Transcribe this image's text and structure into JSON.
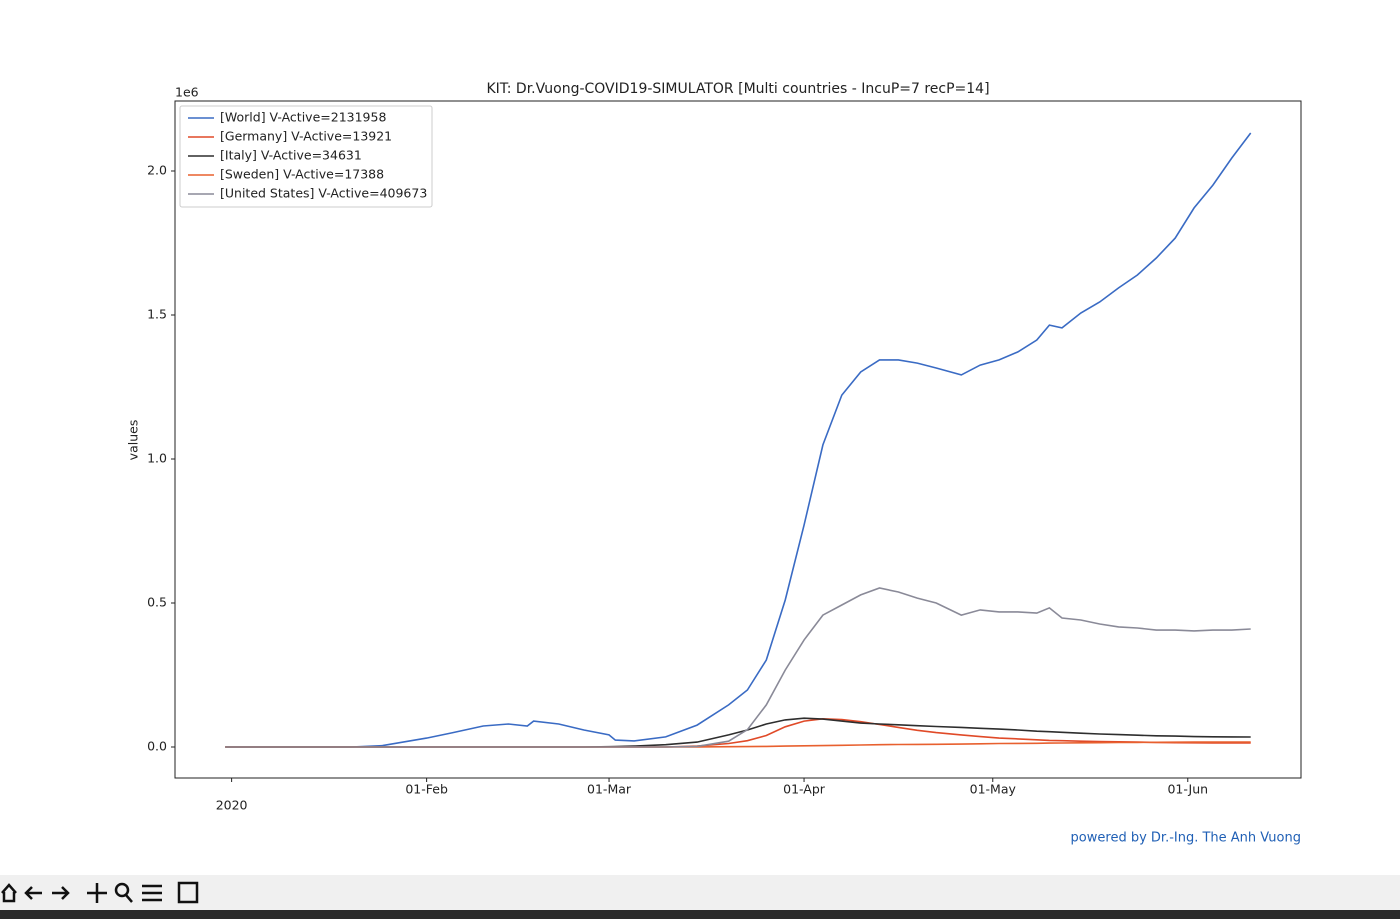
{
  "chart_data": {
    "type": "line",
    "title": "KIT: Dr.Vuong-COVID19-SIMULATOR [Multi countries - IncuP=7 recP=14]",
    "y_label": "values",
    "y_offset_label": "1e6",
    "footer": "powered by Dr.-Ing. The Anh Vuong",
    "legend": "upper left",
    "x": [
      "2019-12-31",
      "2020-01-10",
      "2020-01-20",
      "2020-01-25",
      "2020-02-01",
      "2020-02-05",
      "2020-02-10",
      "2020-02-14",
      "2020-02-17",
      "2020-02-18",
      "2020-02-22",
      "2020-02-26",
      "2020-03-01",
      "2020-03-02",
      "2020-03-05",
      "2020-03-10",
      "2020-03-15",
      "2020-03-20",
      "2020-03-23",
      "2020-03-26",
      "2020-03-29",
      "2020-04-01",
      "2020-04-04",
      "2020-04-07",
      "2020-04-10",
      "2020-04-13",
      "2020-04-16",
      "2020-04-19",
      "2020-04-22",
      "2020-04-26",
      "2020-04-29",
      "2020-05-02",
      "2020-05-05",
      "2020-05-08",
      "2020-05-10",
      "2020-05-12",
      "2020-05-15",
      "2020-05-18",
      "2020-05-21",
      "2020-05-24",
      "2020-05-27",
      "2020-05-30",
      "2020-06-02",
      "2020-06-05",
      "2020-06-08",
      "2020-06-11"
    ],
    "xlim": [
      "2019-12-23",
      "2020-06-19"
    ],
    "xticks": [
      {
        "value": "2020-01-01",
        "label": "2020"
      },
      {
        "value": "2020-02-01",
        "label": "01-Feb"
      },
      {
        "value": "2020-03-01",
        "label": "01-Mar"
      },
      {
        "value": "2020-04-01",
        "label": "01-Apr"
      },
      {
        "value": "2020-05-01",
        "label": "01-May"
      },
      {
        "value": "2020-06-01",
        "label": "01-Jun"
      }
    ],
    "ylim": [
      -107650,
      2243000
    ],
    "yticks": [
      {
        "value": 0,
        "label": "0.0"
      },
      {
        "value": 500000,
        "label": "0.5"
      },
      {
        "value": 1000000,
        "label": "1.0"
      },
      {
        "value": 1500000,
        "label": "1.5"
      },
      {
        "value": 2000000,
        "label": "2.0"
      }
    ],
    "series": [
      {
        "name": "[World] V-Active=2131958",
        "color": "#3a6bc4",
        "values": [
          0,
          0,
          0,
          5000,
          31000,
          49000,
          73000,
          80000,
          73000,
          90000,
          80000,
          59000,
          42000,
          24000,
          21000,
          35000,
          76000,
          146000,
          198000,
          302000,
          510000,
          771000,
          1049000,
          1222000,
          1302000,
          1344000,
          1344000,
          1333000,
          1316000,
          1292000,
          1326000,
          1344000,
          1372000,
          1413000,
          1465000,
          1455000,
          1507000,
          1545000,
          1594000,
          1639000,
          1698000,
          1767000,
          1872000,
          1951000,
          2045000,
          2131958
        ]
      },
      {
        "name": "[Germany] V-Active=13921",
        "color": "#e04a28",
        "values": [
          0,
          0,
          0,
          0,
          0,
          0,
          0,
          0,
          0,
          0,
          0,
          0,
          0,
          0,
          0,
          0,
          3000,
          12000,
          22000,
          40000,
          70000,
          90000,
          98000,
          95000,
          88000,
          78000,
          68000,
          58000,
          50000,
          42000,
          36000,
          31000,
          28000,
          25000,
          23000,
          22000,
          20000,
          19000,
          18000,
          17000,
          16000,
          15000,
          14500,
          14000,
          14000,
          13921
        ]
      },
      {
        "name": "[Italy] V-Active=34631",
        "color": "#2e2e2e",
        "values": [
          0,
          0,
          0,
          0,
          0,
          0,
          0,
          0,
          0,
          0,
          0,
          0,
          1000,
          1500,
          3000,
          8000,
          17000,
          42000,
          59000,
          80000,
          94000,
          100000,
          97000,
          90000,
          83000,
          80000,
          77000,
          74000,
          71000,
          68000,
          65000,
          62000,
          59000,
          55000,
          53000,
          51000,
          48000,
          45000,
          43000,
          41000,
          39000,
          38000,
          36000,
          35500,
          35000,
          34631
        ]
      },
      {
        "name": "[Sweden] V-Active=17388",
        "color": "#e8602f",
        "values": [
          0,
          0,
          0,
          0,
          0,
          0,
          0,
          0,
          0,
          0,
          0,
          0,
          0,
          0,
          0,
          0,
          500,
          1000,
          1500,
          2000,
          3000,
          4000,
          5000,
          6000,
          7000,
          8000,
          8500,
          9000,
          9500,
          10000,
          11000,
          12000,
          12500,
          13000,
          13500,
          14000,
          14500,
          15000,
          15500,
          16000,
          16300,
          16600,
          16900,
          17100,
          17200,
          17388
        ]
      },
      {
        "name": "[United States] V-Active=409673",
        "color": "#8a8a98",
        "values": [
          0,
          0,
          0,
          0,
          0,
          0,
          0,
          0,
          0,
          0,
          0,
          0,
          0,
          0,
          0,
          0,
          2000,
          20000,
          60000,
          146000,
          267000,
          372000,
          458000,
          493000,
          528000,
          552000,
          538000,
          517000,
          500000,
          458000,
          476000,
          469000,
          469000,
          465000,
          483000,
          448000,
          441000,
          427000,
          417000,
          413000,
          406000,
          406000,
          403000,
          406000,
          406000,
          409673
        ]
      }
    ]
  }
}
